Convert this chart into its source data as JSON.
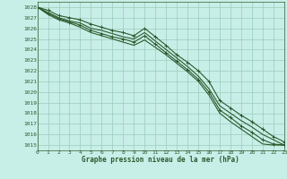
{
  "xlabel": "Graphe pression niveau de la mer (hPa)",
  "ylim": [
    1014.5,
    1028.5
  ],
  "xlim": [
    0,
    23
  ],
  "yticks": [
    1015,
    1016,
    1017,
    1018,
    1019,
    1020,
    1021,
    1022,
    1023,
    1024,
    1025,
    1026,
    1027,
    1028
  ],
  "xticks": [
    0,
    1,
    2,
    3,
    4,
    5,
    6,
    7,
    8,
    9,
    10,
    11,
    12,
    13,
    14,
    15,
    16,
    17,
    18,
    19,
    20,
    21,
    22,
    23
  ],
  "bg_color": "#c8eee8",
  "grid_color": "#99ccbb",
  "line_color": "#2d5a2d",
  "series": [
    [
      1028.0,
      1027.7,
      1027.2,
      1027.0,
      1026.8,
      1026.4,
      1026.1,
      1025.8,
      1025.6,
      1025.3,
      1026.0,
      1025.2,
      1024.4,
      1023.5,
      1022.8,
      1022.0,
      1021.0,
      1019.2,
      1018.5,
      1017.8,
      1017.2,
      1016.5,
      1015.8,
      1015.3
    ],
    [
      1028.0,
      1027.5,
      1027.0,
      1026.7,
      1026.5,
      1026.0,
      1025.8,
      1025.5,
      1025.2,
      1025.0,
      1025.6,
      1024.8,
      1024.0,
      1023.2,
      1022.4,
      1021.5,
      1020.3,
      1018.7,
      1018.0,
      1017.3,
      1016.7,
      1016.0,
      1015.5,
      1015.0
    ],
    [
      1028.0,
      1027.4,
      1026.9,
      1026.6,
      1026.3,
      1025.8,
      1025.5,
      1025.2,
      1025.0,
      1024.7,
      1025.3,
      1024.5,
      1023.7,
      1022.9,
      1022.1,
      1021.2,
      1020.0,
      1018.3,
      1017.6,
      1016.8,
      1016.2,
      1015.5,
      1015.1,
      1015.0
    ],
    [
      1028.0,
      1027.3,
      1026.8,
      1026.5,
      1026.1,
      1025.6,
      1025.3,
      1025.0,
      1024.7,
      1024.4,
      1024.9,
      1024.2,
      1023.5,
      1022.7,
      1021.9,
      1021.0,
      1019.7,
      1018.0,
      1017.2,
      1016.5,
      1015.8,
      1015.1,
      1015.0,
      1015.0
    ]
  ],
  "marker_series": [
    0,
    2
  ],
  "marker": "+"
}
